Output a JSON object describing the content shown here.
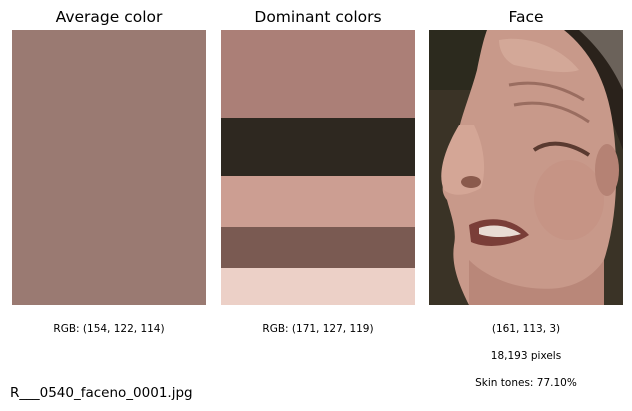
{
  "panels": {
    "average": {
      "title": "Average color",
      "color": "#9a7a72",
      "caption": "RGB: (154, 122, 114)"
    },
    "dominant": {
      "title": "Dominant colors",
      "caption": "RGB: (171, 127, 119)",
      "bands": [
        {
          "color": "#ab7f77",
          "fraction": 0.32
        },
        {
          "color": "#2e2820",
          "fraction": 0.21
        },
        {
          "color": "#cc9e92",
          "fraction": 0.185
        },
        {
          "color": "#7a5a52",
          "fraction": 0.15
        },
        {
          "color": "#ecd0c7",
          "fraction": 0.145
        }
      ]
    },
    "face": {
      "title": "Face",
      "image_icon": "face-photo",
      "caption_color": "(161, 113, 3)",
      "caption_pixels": "18,193 pixels",
      "caption_skin": "Skin tones: 77.10%"
    }
  },
  "filename": "R___0540_faceno_0001.jpg"
}
